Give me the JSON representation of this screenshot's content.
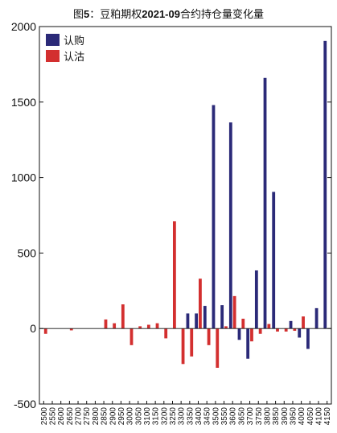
{
  "title": {
    "prefix": "图",
    "num": "5",
    "sep": "：豆粕期权",
    "code": "2021-09",
    "suffix": "合约持仓量变化量"
  },
  "colors": {
    "call": "#2b2a78",
    "put": "#d32f2f",
    "axis": "#111111"
  },
  "chart_data": {
    "type": "bar",
    "title": "图5：豆粕期权2021-09合约持仓量变化量",
    "xlabel": "",
    "ylabel": "",
    "ylim": [
      -500,
      2000
    ],
    "yticks": [
      -500,
      0,
      500,
      1000,
      1500,
      2000
    ],
    "legend": "top-left",
    "grid": false,
    "categories": [
      "2500",
      "2550",
      "2600",
      "2650",
      "2700",
      "2750",
      "2800",
      "2850",
      "2900",
      "2950",
      "3000",
      "3050",
      "3100",
      "3150",
      "3200",
      "3250",
      "3300",
      "3350",
      "3400",
      "3450",
      "3500",
      "3550",
      "3600",
      "3650",
      "3700",
      "3750",
      "3800",
      "3850",
      "3900",
      "3950",
      "4000",
      "4050",
      "4100",
      "4150"
    ],
    "series": [
      {
        "name": "认购",
        "color": "#2b2a78",
        "values": [
          0,
          0,
          0,
          0,
          0,
          0,
          0,
          0,
          0,
          0,
          0,
          0,
          0,
          0,
          0,
          0,
          0,
          100,
          100,
          150,
          1480,
          155,
          1365,
          -75,
          -200,
          385,
          1660,
          905,
          0,
          50,
          -60,
          -135,
          135,
          1905
        ]
      },
      {
        "name": "认沽",
        "color": "#d32f2f",
        "values": [
          -35,
          0,
          0,
          -12,
          0,
          0,
          0,
          60,
          35,
          160,
          -110,
          15,
          25,
          35,
          -65,
          710,
          -235,
          -185,
          330,
          -110,
          -260,
          15,
          215,
          65,
          -85,
          -35,
          30,
          -20,
          -20,
          -15,
          80,
          0,
          0,
          0
        ]
      }
    ]
  }
}
